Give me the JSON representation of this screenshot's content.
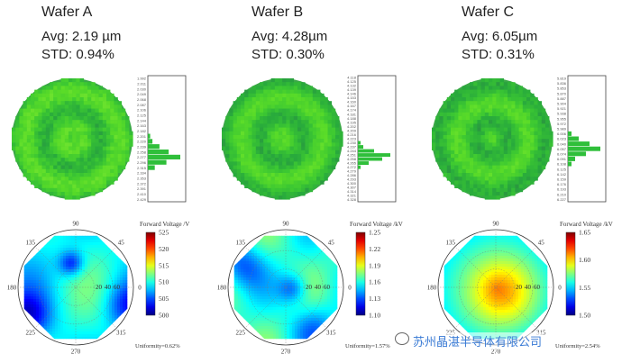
{
  "chart_data": [
    {
      "type": "heatmap",
      "wafer": "Wafer A",
      "avg": "Avg: 2.19 µm",
      "std": "STD: 0.94%",
      "hist_labels": [
        "1.992",
        "2.011",
        "2.030",
        "2.049",
        "2.068",
        "2.087",
        "2.106",
        "2.125",
        "2.144",
        "2.163",
        "2.182",
        "2.201",
        "2.220",
        "2.239",
        "2.258",
        "2.277",
        "2.296",
        "2.315",
        "2.334",
        "2.353",
        "2.372",
        "2.391",
        "2.410",
        "2.429"
      ],
      "hist_counts": [
        0,
        0,
        0,
        0,
        0,
        0,
        0,
        0,
        0,
        0,
        0,
        1,
        2,
        5,
        9,
        14,
        8,
        3,
        0,
        0,
        0,
        0,
        0,
        0
      ],
      "colorbar_title": "Forward Voltage /V",
      "colorbar_ticks": [
        "525",
        "520",
        "515",
        "510",
        "505",
        "500"
      ],
      "angle_labels": [
        "90",
        "45",
        "0",
        "315",
        "270",
        "225",
        "180",
        "135"
      ],
      "radial_ticks": [
        "20",
        "40",
        "60"
      ],
      "uniformity": "Uniformity=0.62%",
      "map_mean": 0.55,
      "map_spread": 0.09,
      "polar_variant": 0
    },
    {
      "type": "heatmap",
      "wafer": "Wafer B",
      "avg": "Avg: 4.28µm",
      "std": "STD: 0.30%",
      "hist_labels": [
        "4.118",
        "4.125",
        "4.132",
        "4.139",
        "4.146",
        "4.153",
        "4.160",
        "4.167",
        "4.174",
        "4.181",
        "4.188",
        "4.195",
        "4.202",
        "4.209",
        "4.216",
        "4.223",
        "4.230",
        "4.237",
        "4.244",
        "4.251",
        "4.258",
        "4.265",
        "4.272",
        "4.279",
        "4.286",
        "4.293",
        "4.300",
        "4.307",
        "4.314",
        "4.321",
        "4.328"
      ],
      "hist_counts": [
        0,
        0,
        0,
        0,
        0,
        0,
        0,
        0,
        0,
        0,
        0,
        0,
        0,
        0,
        0,
        0,
        1,
        2,
        6,
        12,
        9,
        4,
        1,
        0,
        0,
        0,
        0,
        0,
        0,
        0,
        0
      ],
      "colorbar_title": "Forward Voltage /kV",
      "colorbar_ticks": [
        "1.25",
        "1.22",
        "1.19",
        "1.16",
        "1.13",
        "1.10"
      ],
      "angle_labels": [
        "90",
        "45",
        "0",
        "315",
        "270",
        "225",
        "180",
        "135"
      ],
      "radial_ticks": [
        "20",
        "40",
        "60"
      ],
      "uniformity": "Uniformity=1.57%",
      "map_mean": 0.5,
      "map_spread": 0.07,
      "polar_variant": 1
    },
    {
      "type": "heatmap",
      "wafer": "Wafer C",
      "avg": "Avg: 6.05µm",
      "std": "STD: 0.31%",
      "hist_labels": [
        "5.819",
        "5.836",
        "5.853",
        "5.870",
        "5.887",
        "5.904",
        "5.921",
        "5.938",
        "5.955",
        "5.972",
        "5.989",
        "6.006",
        "6.023",
        "6.040",
        "6.057",
        "6.074",
        "6.091",
        "6.108",
        "6.125",
        "6.142",
        "6.159",
        "6.176",
        "6.193",
        "6.210",
        "6.227"
      ],
      "hist_counts": [
        0,
        0,
        0,
        0,
        0,
        0,
        0,
        0,
        0,
        0,
        0,
        1,
        3,
        6,
        9,
        5,
        2,
        1,
        0,
        0,
        0,
        0,
        0,
        0,
        0
      ],
      "colorbar_title": "Forward Voltage /kV",
      "colorbar_ticks": [
        "1.65",
        "1.60",
        "1.55",
        "1.50"
      ],
      "angle_labels": [
        "90",
        "45",
        "0",
        "315",
        "270",
        "225",
        "180",
        "135"
      ],
      "radial_ticks": [
        "20",
        "40",
        "60"
      ],
      "uniformity": "Uniformity=2.54%",
      "map_mean": 0.5,
      "map_spread": 0.08,
      "polar_variant": 2
    }
  ],
  "watermark": "苏州晶湛半导体有限公司"
}
